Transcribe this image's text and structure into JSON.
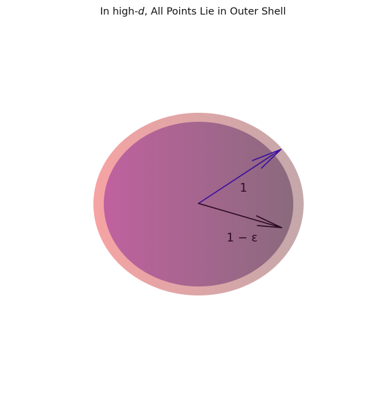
{
  "title": {
    "prefix": "In high-",
    "italic_var": "d",
    "suffix": ", All Points Lie in Outer Shell"
  },
  "diagram": {
    "outer_radius_label": "1",
    "inner_radius_label": "1 − ε",
    "colors": {
      "outer_gradient_start": "#f6a3a3",
      "outer_gradient_end": "#c4a8aa",
      "inner_gradient_start": "#c0619f",
      "inner_gradient_end": "#8a6a7d",
      "outer_arrow": "#3a0fa0",
      "inner_arrow": "#2c0a22",
      "label_text": "#2c0a22"
    }
  }
}
